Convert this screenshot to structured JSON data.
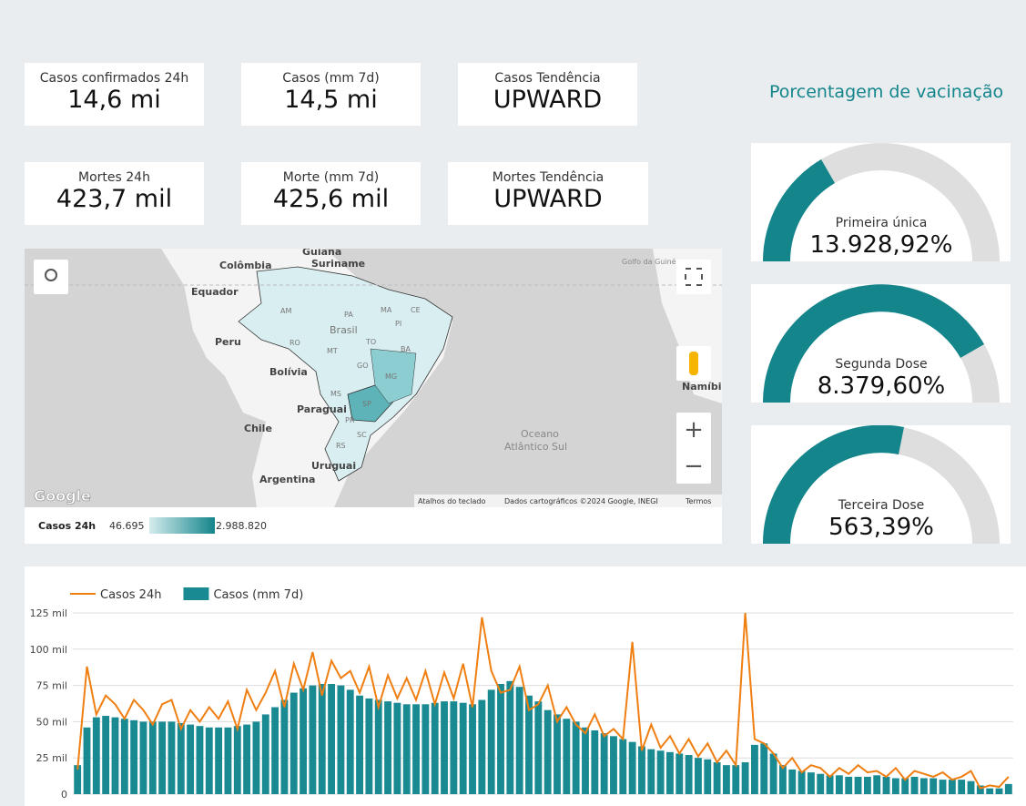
{
  "kpis": [
    {
      "label": "Casos confirmados 24h",
      "value": "14,6 mi"
    },
    {
      "label": "Casos (mm 7d)",
      "value": "14,5 mi"
    },
    {
      "label": "Casos Tendência",
      "value": "UPWARD"
    },
    {
      "label": "Mortes 24h",
      "value": "423,7 mil"
    },
    {
      "label": "Morte (mm 7d)",
      "value": "425,6 mil"
    },
    {
      "label": "Mortes Tendência",
      "value": "UPWARD"
    }
  ],
  "vaccination": {
    "title": "Porcentagem de vacinação",
    "gauges": [
      {
        "label": "Primeira única",
        "value": "13.928,92%"
      },
      {
        "label": "Segunda Dose",
        "value": "8.379,60%"
      },
      {
        "label": "Terceira Dose",
        "value": "563,39%"
      }
    ]
  },
  "map": {
    "places": [
      "Guiana",
      "Suriname",
      "Colômbia",
      "Equador",
      "Peru",
      "Brasil",
      "Bolívia",
      "Paraguai",
      "Chile",
      "Uruguai",
      "Argentina",
      "Namíbia",
      "Golfo da Guiné",
      "Oceano",
      "Atlântico Sul"
    ],
    "states": [
      "AM",
      "PA",
      "MA",
      "CE",
      "PI",
      "RO",
      "MT",
      "TO",
      "BA",
      "GO",
      "MG",
      "MS",
      "SP",
      "PR",
      "SC",
      "RS"
    ],
    "credits": [
      "Google",
      "Atalhos do teclado",
      "Dados cartográficos ©2024 Google, INEGI",
      "Termos"
    ],
    "legend": {
      "title": "Casos 24h",
      "min": "46.695",
      "max": "2.988.820"
    }
  },
  "chart_data": {
    "type": "combo",
    "series": [
      {
        "name": "Casos 24h",
        "type": "line",
        "color": "#f07f12",
        "values": [
          17000,
          88000,
          55000,
          68000,
          62000,
          52000,
          65000,
          58000,
          48000,
          62000,
          65000,
          45000,
          58000,
          50000,
          60000,
          52000,
          64000,
          45000,
          72000,
          58000,
          70000,
          85000,
          60000,
          90000,
          72000,
          98000,
          68000,
          92000,
          80000,
          85000,
          70000,
          88000,
          60000,
          82000,
          66000,
          80000,
          65000,
          85000,
          62000,
          84000,
          66000,
          90000,
          60000,
          122000,
          85000,
          70000,
          72000,
          88000,
          58000,
          62000,
          75000,
          50000,
          60000,
          48000,
          42000,
          55000,
          40000,
          45000,
          38000,
          105000,
          30000,
          48000,
          32000,
          40000,
          28000,
          38000,
          26000,
          35000,
          22000,
          30000,
          20000,
          125000,
          38000,
          35000,
          28000,
          18000,
          25000,
          15000,
          20000,
          18000,
          12000,
          18000,
          14000,
          20000,
          15000,
          16000,
          12000,
          18000,
          10000,
          16000,
          14000,
          12000,
          15000,
          10000,
          12000,
          16000,
          4000,
          6000,
          5000,
          12000
        ]
      },
      {
        "name": "Casos (mm 7d)",
        "type": "bar",
        "color": "#1a8a92",
        "values": [
          20000,
          46000,
          53000,
          54000,
          53000,
          52000,
          51000,
          50000,
          50000,
          50000,
          50000,
          49000,
          48000,
          47000,
          46000,
          46000,
          46000,
          47000,
          48000,
          50000,
          55000,
          60000,
          65000,
          70000,
          73000,
          75000,
          76000,
          76000,
          75000,
          72000,
          68000,
          66000,
          65000,
          64000,
          63000,
          62000,
          62000,
          62000,
          63000,
          64000,
          64000,
          63000,
          62000,
          65000,
          72000,
          76000,
          78000,
          74000,
          68000,
          64000,
          58000,
          55000,
          52000,
          50000,
          46000,
          44000,
          42000,
          40000,
          38000,
          36000,
          33000,
          31000,
          30000,
          29000,
          28000,
          27000,
          25000,
          24000,
          22000,
          20000,
          20000,
          22000,
          34000,
          35000,
          28000,
          20000,
          17000,
          16000,
          15000,
          14000,
          13000,
          13000,
          12000,
          12000,
          12000,
          13000,
          12000,
          11000,
          11000,
          12000,
          11000,
          11000,
          10000,
          10000,
          10000,
          9000,
          6000,
          4000,
          4000,
          7000
        ]
      }
    ],
    "ylim": [
      0,
      125000
    ],
    "yticks": [
      0,
      {
        "value": 25000,
        "label": "25 mil"
      },
      {
        "value": 50000,
        "label": "50 mil"
      },
      {
        "value": 75000,
        "label": "75 mil"
      },
      {
        "value": 100000,
        "label": "100 mil"
      },
      {
        "value": 125000,
        "label": "125 mil"
      }
    ],
    "grid": true
  }
}
